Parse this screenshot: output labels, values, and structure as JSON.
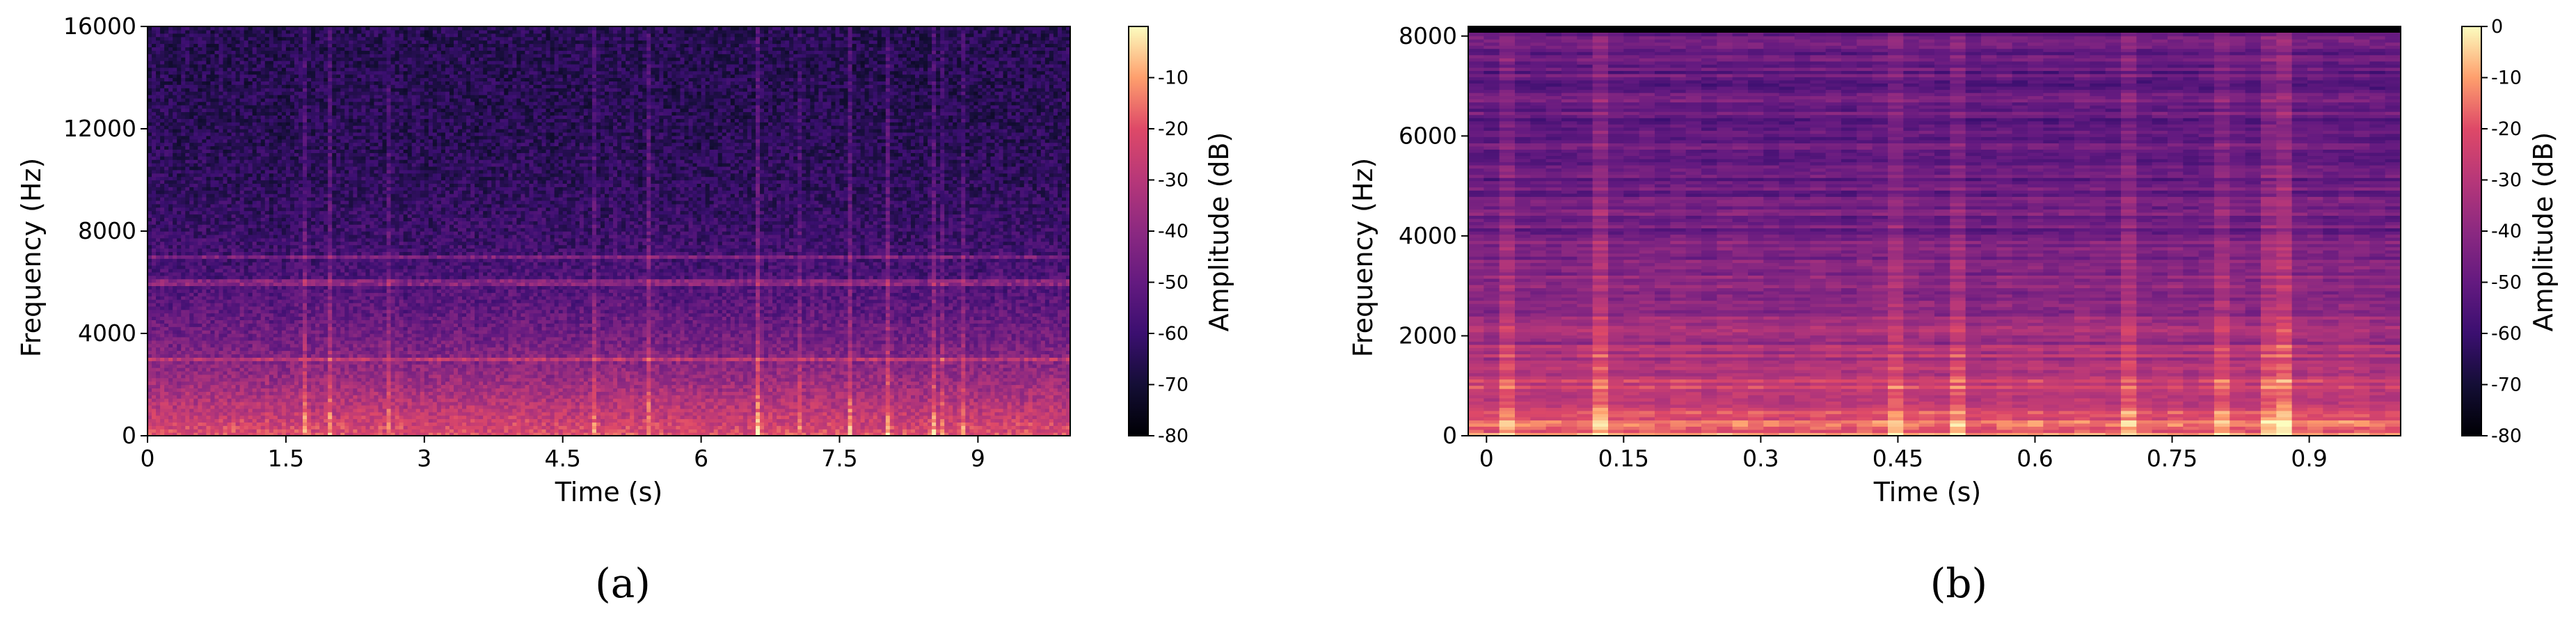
{
  "chart_data": [
    {
      "type": "heatmap",
      "panel_caption": "(a)",
      "xlabel": "Time (s)",
      "ylabel": "Frequency (Hz)",
      "xlim": [
        0,
        10
      ],
      "ylim": [
        0,
        16000
      ],
      "x_ticks": [
        "0",
        "1.5",
        "3",
        "4.5",
        "6",
        "7.5",
        "9"
      ],
      "x_tick_values": [
        0,
        1.5,
        3,
        4.5,
        6,
        7.5,
        9
      ],
      "y_ticks": [
        "0",
        "4000",
        "8000",
        "12000",
        "16000"
      ],
      "y_tick_values": [
        0,
        4000,
        8000,
        12000,
        16000
      ],
      "colorbar": {
        "label": "Amplitude (dB)",
        "range": [
          -80,
          0
        ],
        "ticks": [
          "-10",
          "-20",
          "-30",
          "-40",
          "-50",
          "-60",
          "-70",
          "-80"
        ],
        "tick_values": [
          -10,
          -20,
          -30,
          -40,
          -50,
          -60,
          -70,
          -80
        ],
        "colormap": "magma"
      },
      "features": {
        "horizontal_lines_hz": [
          3000,
          6000,
          7000
        ],
        "low_frequency_energy_db": -20,
        "high_frequency_energy_db": -65
      }
    },
    {
      "type": "heatmap",
      "panel_caption": "(b)",
      "xlabel": "Time (s)",
      "ylabel": "Frequency (Hz)",
      "xlim": [
        -0.02,
        1.0
      ],
      "ylim": [
        0,
        8192
      ],
      "x_ticks": [
        "0",
        "0.15",
        "0.3",
        "0.45",
        "0.6",
        "0.75",
        "0.9"
      ],
      "x_tick_values": [
        0,
        0.15,
        0.3,
        0.45,
        0.6,
        0.75,
        0.9
      ],
      "y_ticks": [
        "0",
        "2000",
        "4000",
        "6000",
        "8000"
      ],
      "y_tick_values": [
        0,
        2000,
        4000,
        6000,
        8000
      ],
      "colorbar": {
        "label": "Amplitude (dB)",
        "range": [
          -80,
          0
        ],
        "ticks": [
          "0",
          "-10",
          "-20",
          "-30",
          "-40",
          "-50",
          "-60",
          "-70",
          "-80"
        ],
        "tick_values": [
          0,
          -10,
          -20,
          -30,
          -40,
          -50,
          -60,
          -70,
          -80
        ],
        "colormap": "magma"
      },
      "features": {
        "low_frequency_energy_db": -15,
        "high_frequency_energy_db": -50
      }
    }
  ]
}
